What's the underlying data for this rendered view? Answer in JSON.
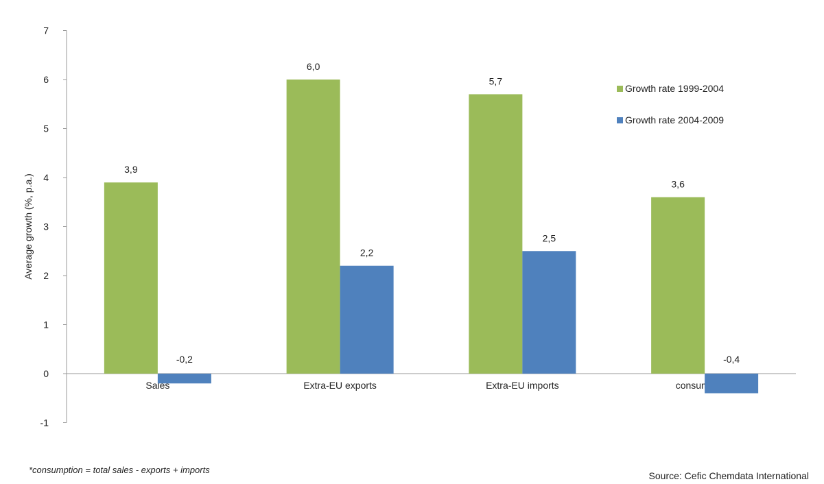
{
  "chart_data": {
    "type": "bar",
    "title": "",
    "xlabel": "",
    "ylabel": "Average growth (%,  p.a.)",
    "ylim": [
      -1,
      7
    ],
    "yticks": [
      -1,
      0,
      1,
      2,
      3,
      4,
      5,
      6,
      7
    ],
    "grid": false,
    "legend_position": "top-right",
    "categories": [
      "Sales",
      "Extra-EU exports",
      "Extra-EU imports",
      "consumption*"
    ],
    "series": [
      {
        "name": "Growth rate 1999-2004",
        "color": "#9bbb59",
        "values": [
          3.9,
          6.0,
          5.7,
          3.6
        ],
        "labels": [
          "3,9",
          "6,0",
          "5,7",
          "3,6"
        ]
      },
      {
        "name": "Growth rate 2004-2009",
        "color": "#4f81bd",
        "values": [
          -0.2,
          2.2,
          2.5,
          -0.4
        ],
        "labels": [
          "-0,2",
          "2,2",
          "2,5",
          "-0,4"
        ]
      }
    ]
  },
  "footnote": "*consumption = total sales - exports + imports",
  "source": "Source: Cefic Chemdata International"
}
